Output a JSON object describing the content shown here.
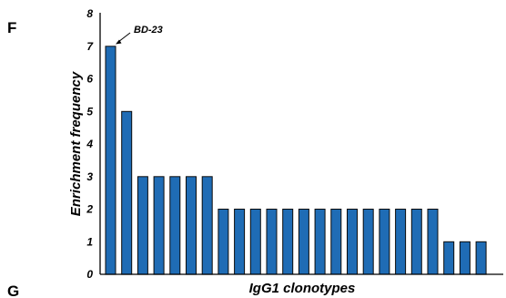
{
  "panels": {
    "top": "F",
    "bottom": "G"
  },
  "colors": {
    "bar": "#1f6cb5",
    "axis": "#000000"
  },
  "chart_data": {
    "type": "bar",
    "title": "",
    "xlabel": "IgG1 clonotypes",
    "ylabel": "Enrichment frequency",
    "ylim": [
      0,
      8
    ],
    "yticks": [
      "0",
      "1",
      "2",
      "3",
      "4",
      "5",
      "6",
      "7",
      "8"
    ],
    "categories": [
      "BD-23",
      "",
      "",
      "",
      "",
      "",
      "",
      "",
      "",
      "",
      "",
      "",
      "",
      "",
      "",
      "",
      "",
      "",
      "",
      "",
      "",
      "",
      "",
      ""
    ],
    "values": [
      7,
      5,
      3,
      3,
      3,
      3,
      3,
      2,
      2,
      2,
      2,
      2,
      2,
      2,
      2,
      2,
      2,
      2,
      2,
      2,
      2,
      1,
      1,
      1
    ],
    "annotation": {
      "text": "BD-23",
      "bar_index": 0
    },
    "grid": false
  }
}
